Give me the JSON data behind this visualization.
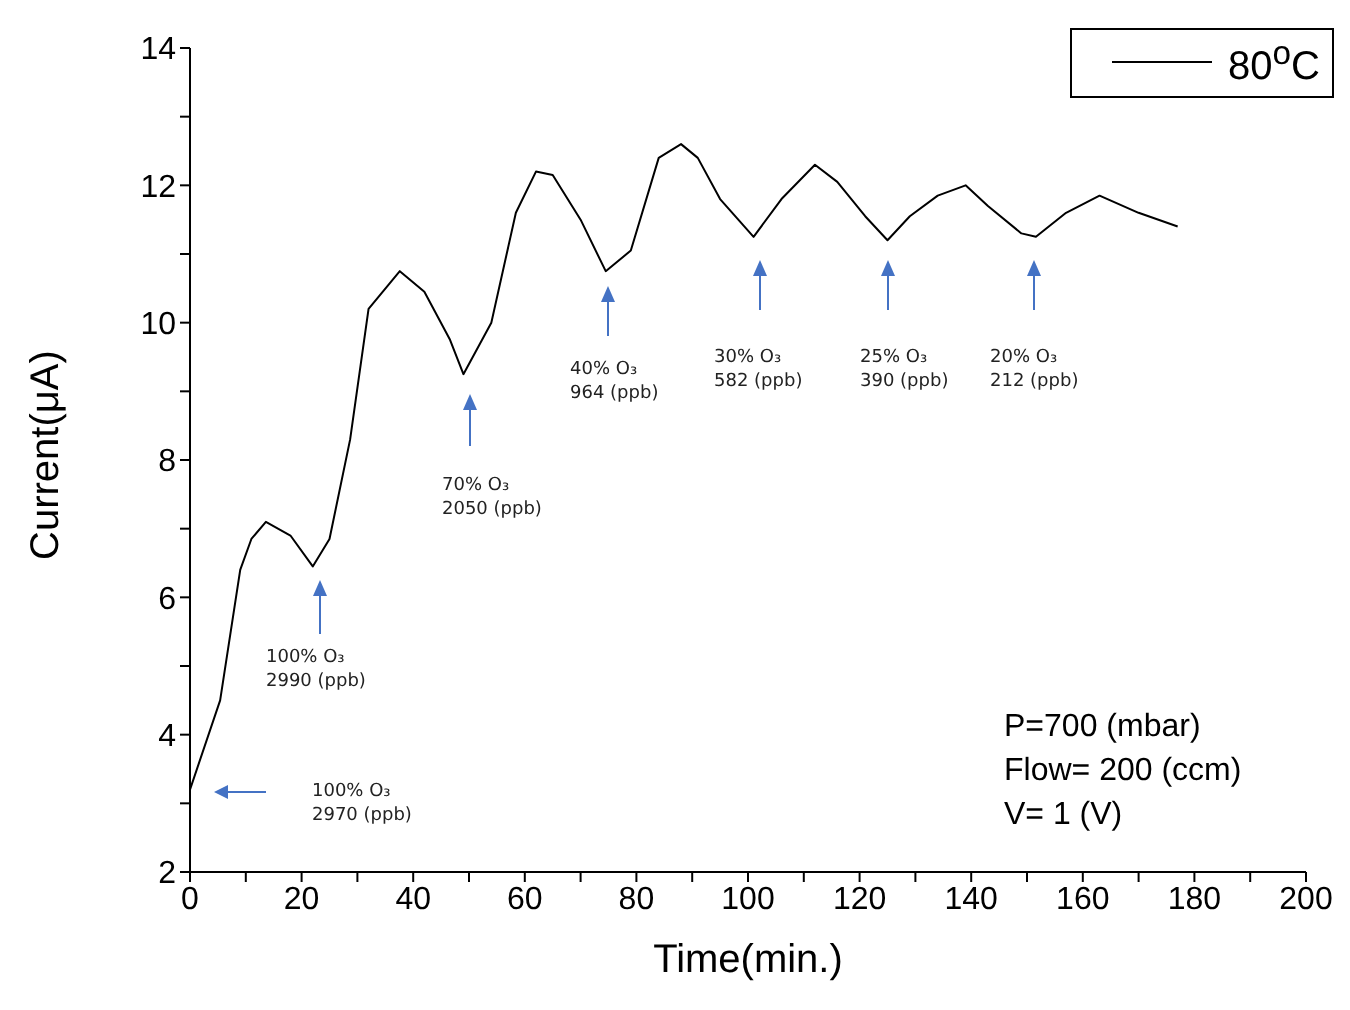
{
  "chart_data": {
    "type": "line",
    "xlabel": "Time(min.)",
    "ylabel": "Current(μA)",
    "xlim": [
      0,
      200
    ],
    "ylim": [
      2,
      14
    ],
    "xticks": [
      0,
      {
        "value": 10,
        "label": null
      },
      20,
      {
        "value": 30,
        "label": null
      },
      40,
      {
        "value": 50,
        "label": null
      },
      60,
      {
        "value": 70,
        "label": null
      },
      80,
      {
        "value": 90,
        "label": null
      },
      100,
      {
        "value": 110,
        "label": null
      },
      120,
      {
        "value": 130,
        "label": null
      },
      140,
      {
        "value": 150,
        "label": null
      },
      160,
      {
        "value": 170,
        "label": null
      },
      180,
      {
        "value": 190,
        "label": null
      },
      200
    ],
    "yticks": [
      2,
      {
        "value": 3,
        "label": null
      },
      4,
      {
        "value": 5,
        "label": null
      },
      6,
      {
        "value": 7,
        "label": null
      },
      8,
      {
        "value": 9,
        "label": null
      },
      10,
      {
        "value": 11,
        "label": null
      },
      12,
      {
        "value": 13,
        "label": null
      },
      14
    ],
    "legend": "top right",
    "grid": false,
    "marker": "none",
    "line_style": "solid",
    "series": [
      {
        "name": "80$^{o}$C",
        "color": "#000000",
        "x": [
          0,
          5.4,
          9,
          11,
          13.6,
          18,
          22,
          25,
          28.7,
          32,
          37.6,
          42,
          46.6,
          49,
          54,
          58.4,
          62,
          65,
          70,
          74.5,
          79,
          84,
          88,
          91,
          95,
          101,
          106,
          112,
          116,
          121,
          125,
          129,
          134,
          139,
          143,
          149,
          151.6,
          157,
          163,
          170,
          177
        ],
        "values": [
          3.2,
          4.5,
          6.4,
          6.85,
          7.1,
          6.9,
          6.45,
          6.85,
          8.3,
          10.2,
          10.75,
          10.45,
          9.75,
          9.25,
          10,
          11.6,
          12.2,
          12.15,
          11.5,
          10.75,
          11.05,
          12.4,
          12.6,
          12.4,
          11.8,
          11.25,
          11.8,
          12.3,
          12.05,
          11.55,
          11.2,
          11.55,
          11.85,
          12,
          11.7,
          11.3,
          11.25,
          11.6,
          11.85,
          11.6,
          11.4
        ]
      }
    ],
    "annotations": [
      "100% O₃\n2970 (ppb)",
      "100% O₃\n2990 (ppb)",
      "70% O₃\n2050 (ppb)",
      "40% O₃\n964 (ppb)",
      "30% O₃\n582 (ppb)",
      "25% O₃\n390 (ppb)",
      "20% O₃\n212 (ppb)",
      "P=700 (mbar)\nFlow= 200 (ccm)\nV= 1 (V)"
    ]
  }
}
